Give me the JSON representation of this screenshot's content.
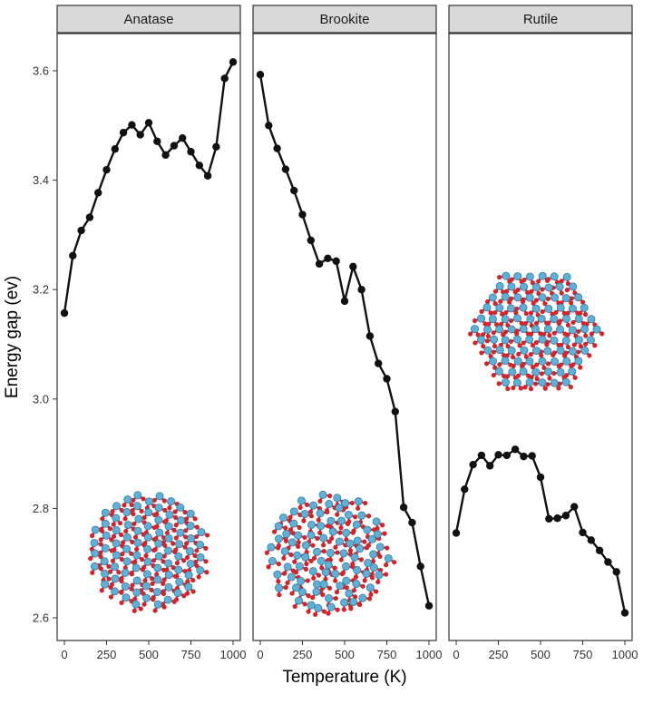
{
  "chart_data": {
    "type": "line",
    "xlabel": "Temperature (K)",
    "ylabel": "Energy gap (ev)",
    "xlim": [
      0,
      1000
    ],
    "ylim": [
      2.58,
      3.66
    ],
    "x_ticks": [
      "0",
      "250",
      "500",
      "750",
      "1000"
    ],
    "y_ticks": [
      "2.6",
      "2.8",
      "3.0",
      "3.2",
      "3.4",
      "3.6"
    ],
    "grid": false,
    "legend": "none",
    "line_color": "#111111",
    "colors": {
      "ti_atom": "#5fb0d6",
      "o_atom": "#d6232a",
      "strip": "#d9d9d9"
    },
    "panels": [
      {
        "name": "Anatase",
        "x": [
          0,
          50,
          100,
          150,
          200,
          250,
          300,
          350,
          400,
          450,
          500,
          550,
          600,
          650,
          700,
          750,
          800,
          850,
          900,
          950,
          1000
        ],
        "y": [
          3.157,
          3.262,
          3.308,
          3.332,
          3.377,
          3.419,
          3.457,
          3.487,
          3.501,
          3.483,
          3.505,
          3.471,
          3.446,
          3.463,
          3.477,
          3.452,
          3.427,
          3.408,
          3.461,
          3.586,
          3.616
        ]
      },
      {
        "name": "Brookite",
        "x": [
          0,
          50,
          100,
          150,
          200,
          250,
          300,
          350,
          400,
          450,
          500,
          550,
          600,
          650,
          700,
          750,
          800,
          850,
          900,
          950,
          1000
        ],
        "y": [
          3.593,
          3.5,
          3.458,
          3.42,
          3.381,
          3.337,
          3.29,
          3.247,
          3.257,
          3.252,
          3.179,
          3.242,
          3.2,
          3.115,
          3.065,
          3.037,
          2.977,
          2.802,
          2.774,
          2.694,
          2.622
        ]
      },
      {
        "name": "Rutile",
        "x": [
          0,
          50,
          100,
          150,
          200,
          250,
          300,
          350,
          400,
          450,
          500,
          550,
          600,
          650,
          700,
          750,
          800,
          850,
          900,
          950,
          1000
        ],
        "y": [
          2.755,
          2.835,
          2.88,
          2.897,
          2.878,
          2.898,
          2.897,
          2.908,
          2.895,
          2.896,
          2.857,
          2.781,
          2.782,
          2.787,
          2.803,
          2.756,
          2.742,
          2.723,
          2.702,
          2.684,
          2.609
        ]
      }
    ]
  }
}
